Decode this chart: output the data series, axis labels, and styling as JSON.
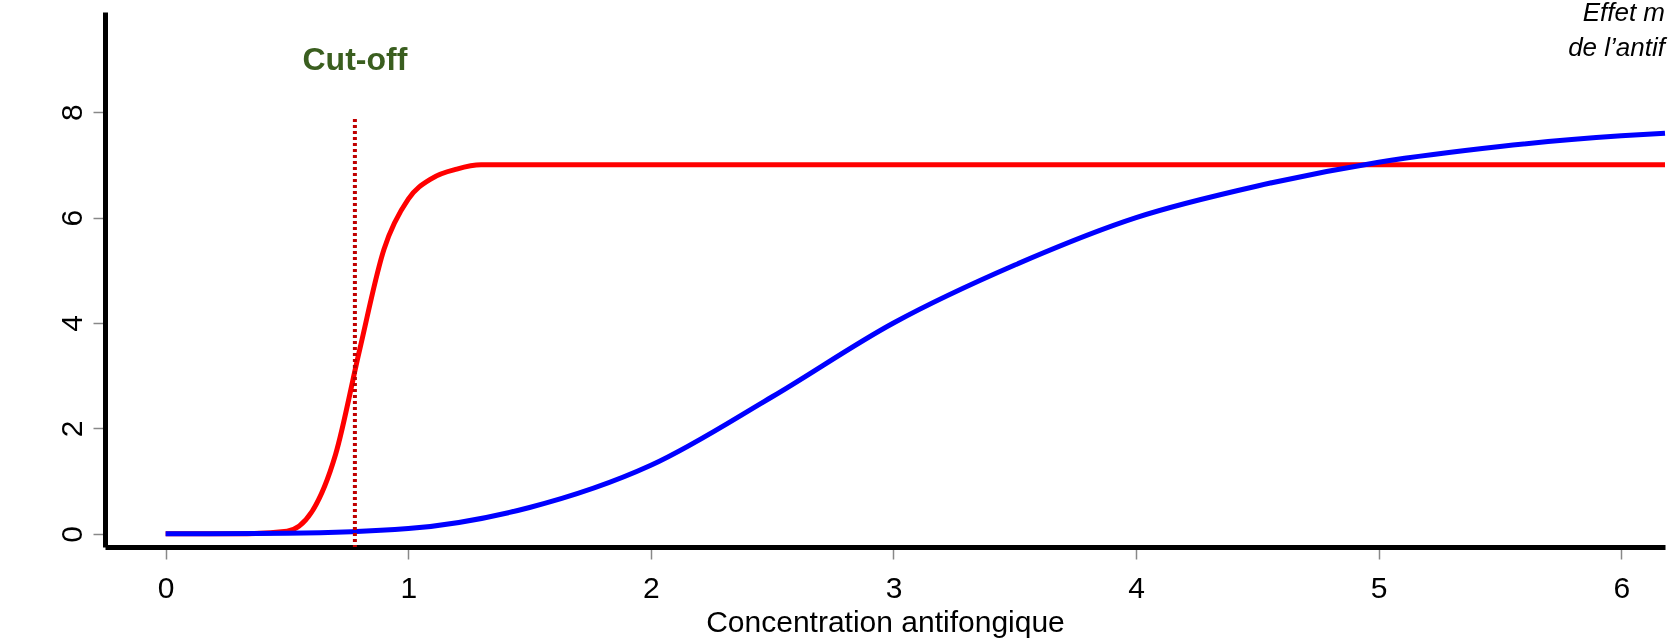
{
  "chart_data": {
    "type": "line",
    "xlabel": "Concentration antifongique",
    "xlim": [
      -0.25,
      6.18
    ],
    "ylim": [
      -0.25,
      9.9
    ],
    "xticks": [
      0,
      1,
      2,
      3,
      4,
      5,
      6
    ],
    "yticks": [
      0,
      2,
      4,
      6,
      8
    ],
    "grid": false,
    "marker": "none",
    "line_style": "solid",
    "series": [
      {
        "color": "#ff0000",
        "x": [
          0,
          0.3,
          0.5,
          0.6,
          0.7,
          0.8,
          0.9,
          1.0,
          1.1,
          1.2,
          1.3,
          1.5,
          2,
          3,
          4,
          5,
          6,
          6.18
        ],
        "values": [
          0,
          0,
          0.05,
          0.4,
          1.5,
          3.5,
          5.4,
          6.35,
          6.75,
          6.92,
          7,
          7,
          7,
          7,
          7,
          7,
          7,
          7
        ]
      },
      {
        "color": "#0000ff",
        "x": [
          0,
          0.5,
          1,
          1.5,
          2,
          2.5,
          3,
          3.5,
          4,
          4.5,
          5,
          5.5,
          6,
          6.18
        ],
        "values": [
          0,
          0.01,
          0.1,
          0.5,
          1.3,
          2.6,
          4.0,
          5.1,
          6.0,
          6.6,
          7.05,
          7.35,
          7.55,
          7.6
        ]
      }
    ],
    "ref_lines": [
      {
        "axis": "x",
        "value": 0.78,
        "label": "Cut-off",
        "color": "#c00000",
        "line_style": "dotted"
      }
    ],
    "annotations": [
      "Effet m",
      "de l’antif"
    ]
  }
}
